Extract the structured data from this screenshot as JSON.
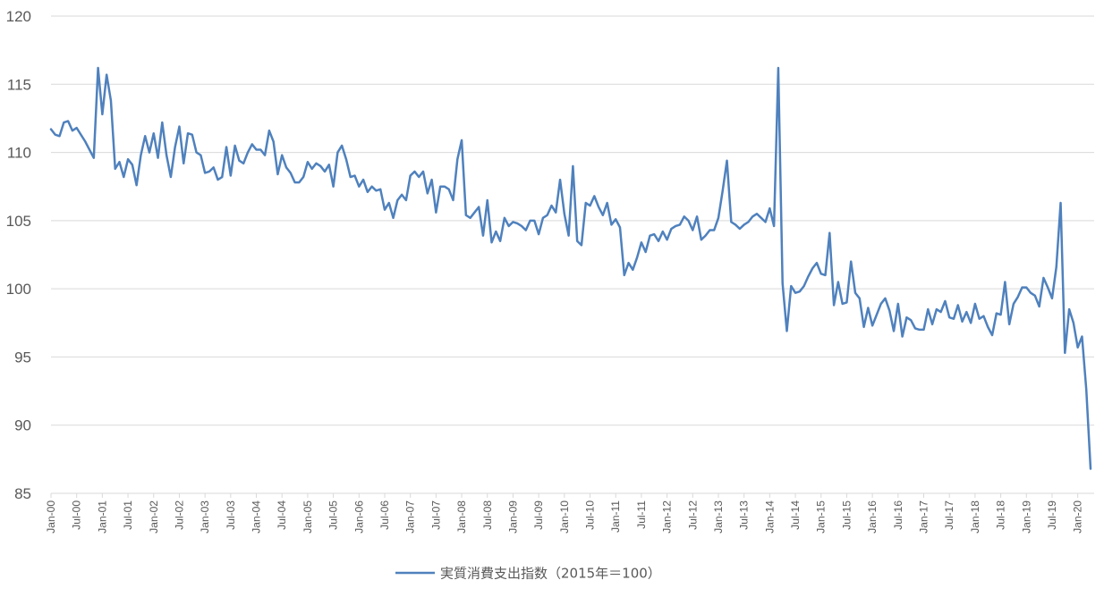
{
  "chart_data": {
    "type": "line",
    "title": "",
    "xlabel": "",
    "ylabel": "",
    "ylim": [
      85,
      120
    ],
    "y_ticks": [
      85,
      90,
      95,
      100,
      105,
      110,
      115,
      120
    ],
    "grid": "horizontal",
    "legend_position": "bottom",
    "x_tick_labels": [
      "Jan-00",
      "Jul-00",
      "Jan-01",
      "Jul-01",
      "Jan-02",
      "Jul-02",
      "Jan-03",
      "Jul-03",
      "Jan-04",
      "Jul-04",
      "Jan-05",
      "Jul-05",
      "Jan-06",
      "Jul-06",
      "Jan-07",
      "Jul-07",
      "Jan-08",
      "Jul-08",
      "Jan-09",
      "Jul-09",
      "Jan-10",
      "Jul-10",
      "Jan-11",
      "Jul-11",
      "Jan-12",
      "Jul-12",
      "Jan-13",
      "Jul-13",
      "Jan-14",
      "Jul-14",
      "Jan-15",
      "Jul-15",
      "Jan-16",
      "Jul-16",
      "Jan-17",
      "Jul-17",
      "Jan-18",
      "Jul-18",
      "Jan-19",
      "Jul-19",
      "Jan-20"
    ],
    "x_start": "Jan-00",
    "series": [
      {
        "name": "実質消費支出指数（2015年＝100）",
        "color": "#4f81bd",
        "values": [
          111.7,
          111.3,
          111.2,
          112.2,
          112.3,
          111.6,
          111.8,
          111.3,
          110.8,
          110.2,
          109.6,
          116.2,
          112.8,
          115.7,
          113.8,
          108.8,
          109.3,
          108.2,
          109.5,
          109.1,
          107.6,
          109.8,
          111.2,
          110.0,
          111.4,
          109.6,
          112.2,
          109.8,
          108.2,
          110.4,
          111.9,
          109.2,
          111.4,
          111.3,
          110.0,
          109.8,
          108.5,
          108.6,
          108.9,
          108.0,
          108.2,
          110.4,
          108.3,
          110.5,
          109.4,
          109.2,
          110.0,
          110.6,
          110.2,
          110.2,
          109.8,
          111.6,
          110.8,
          108.4,
          109.8,
          108.9,
          108.5,
          107.8,
          107.8,
          108.2,
          109.3,
          108.8,
          109.2,
          109.0,
          108.6,
          109.1,
          107.5,
          110.0,
          110.5,
          109.5,
          108.2,
          108.3,
          107.5,
          108.0,
          107.1,
          107.5,
          107.2,
          107.3,
          105.8,
          106.3,
          105.2,
          106.5,
          106.9,
          106.5,
          108.3,
          108.6,
          108.2,
          108.6,
          107.0,
          108.0,
          105.6,
          107.5,
          107.5,
          107.3,
          106.5,
          109.5,
          110.9,
          105.4,
          105.2,
          105.6,
          106.0,
          103.9,
          106.5,
          103.4,
          104.2,
          103.5,
          105.2,
          104.6,
          104.9,
          104.8,
          104.6,
          104.3,
          105.0,
          105.0,
          104.0,
          105.2,
          105.4,
          106.1,
          105.6,
          108.0,
          105.5,
          103.9,
          109.0,
          103.5,
          103.2,
          106.3,
          106.1,
          106.8,
          106.0,
          105.4,
          106.3,
          104.7,
          105.1,
          104.5,
          101.0,
          101.9,
          101.4,
          102.3,
          103.4,
          102.7,
          103.9,
          104.0,
          103.5,
          104.2,
          103.6,
          104.4,
          104.6,
          104.7,
          105.3,
          105.0,
          104.3,
          105.3,
          103.6,
          103.9,
          104.3,
          104.3,
          105.2,
          107.2,
          109.4,
          104.9,
          104.7,
          104.4,
          104.7,
          104.9,
          105.3,
          105.5,
          105.2,
          104.9,
          105.9,
          104.6,
          116.2,
          100.4,
          96.9,
          100.2,
          99.7,
          99.8,
          100.2,
          100.9,
          101.5,
          101.9,
          101.1,
          101.0,
          104.1,
          98.8,
          100.5,
          98.9,
          99.0,
          102.0,
          99.7,
          99.3,
          97.2,
          98.6,
          97.3,
          98.1,
          98.9,
          99.3,
          98.4,
          96.9,
          98.9,
          96.5,
          97.9,
          97.7,
          97.1,
          97.0,
          97.0,
          98.5,
          97.4,
          98.5,
          98.3,
          99.1,
          97.9,
          97.8,
          98.8,
          97.6,
          98.3,
          97.5,
          98.9,
          97.8,
          98.0,
          97.2,
          96.6,
          98.2,
          98.1,
          100.5,
          97.4,
          98.9,
          99.4,
          100.1,
          100.1,
          99.7,
          99.5,
          98.7,
          100.8,
          100.1,
          99.3,
          101.6,
          106.3,
          95.3,
          98.5,
          97.5,
          95.7,
          96.5,
          92.6,
          86.8
        ]
      }
    ]
  }
}
